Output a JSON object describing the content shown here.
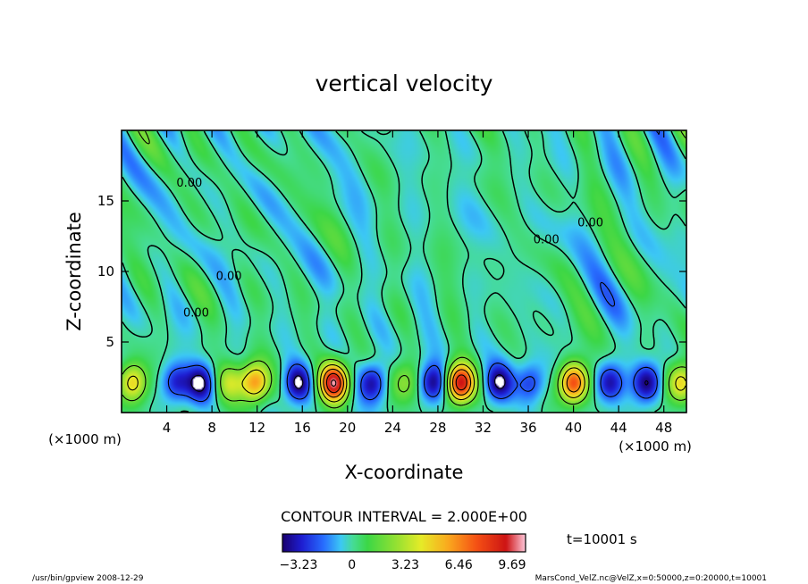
{
  "chart_data": {
    "type": "heatmap",
    "title": "vertical velocity",
    "xlabel": "X-coordinate",
    "ylabel": "Z-coordinate",
    "x_unit_left": "(×1000 m)",
    "x_unit_right": "(×1000 m)",
    "xlim": [
      0,
      50
    ],
    "ylim": [
      0,
      20
    ],
    "x_ticks": [
      4,
      8,
      12,
      16,
      20,
      24,
      28,
      32,
      36,
      40,
      44,
      48
    ],
    "y_ticks": [
      5,
      10,
      15
    ],
    "contour_interval_text": "CONTOUR INTERVAL = 2.000E+00",
    "time_label": "t=10001 s",
    "contour_labels": [
      {
        "text": "0.00",
        "x": 6.0,
        "z": 16.0
      },
      {
        "text": "0.00",
        "x": 9.5,
        "z": 9.4
      },
      {
        "text": "0.00",
        "x": 6.6,
        "z": 6.8
      },
      {
        "text": "0.00",
        "x": 41.5,
        "z": 13.2
      },
      {
        "text": "0.00",
        "x": 37.6,
        "z": 12.0
      }
    ],
    "colorbar": {
      "min": -4.2,
      "max": 10.5,
      "tick_values": [
        -3.23,
        0,
        3.23,
        6.46,
        9.69
      ],
      "tick_labels": [
        "−3.23",
        "0",
        "3.23",
        "6.46",
        "9.69"
      ]
    },
    "cells": [
      {
        "x": 1.0,
        "sign": 1,
        "amp": 5.0
      },
      {
        "x": 4.8,
        "sign": -1,
        "amp": 3.0
      },
      {
        "x": 7.0,
        "sign": -1,
        "amp": 4.2
      },
      {
        "x": 9.6,
        "sign": 1,
        "amp": 3.4
      },
      {
        "x": 11.8,
        "sign": 1,
        "amp": 6.5
      },
      {
        "x": 15.6,
        "sign": -1,
        "amp": 4.2
      },
      {
        "x": 18.8,
        "sign": 1,
        "amp": 10.0
      },
      {
        "x": 22.2,
        "sign": -1,
        "amp": 3.8
      },
      {
        "x": 25.0,
        "sign": 1,
        "amp": 2.4
      },
      {
        "x": 27.6,
        "sign": -1,
        "amp": 4.0
      },
      {
        "x": 30.0,
        "sign": 1,
        "amp": 9.5
      },
      {
        "x": 33.4,
        "sign": -1,
        "amp": 4.2
      },
      {
        "x": 36.2,
        "sign": -1,
        "amp": 2.6
      },
      {
        "x": 40.0,
        "sign": 1,
        "amp": 8.0
      },
      {
        "x": 43.2,
        "sign": -1,
        "amp": 3.6
      },
      {
        "x": 46.5,
        "sign": -1,
        "amp": 4.2
      },
      {
        "x": 49.5,
        "sign": 1,
        "amp": 5.0
      }
    ]
  },
  "footer": {
    "left": "/usr/bin/gpview  2008-12-29",
    "right": "MarsCond_VelZ.nc@VelZ,x=0:50000,z=0:20000,t=10001"
  }
}
